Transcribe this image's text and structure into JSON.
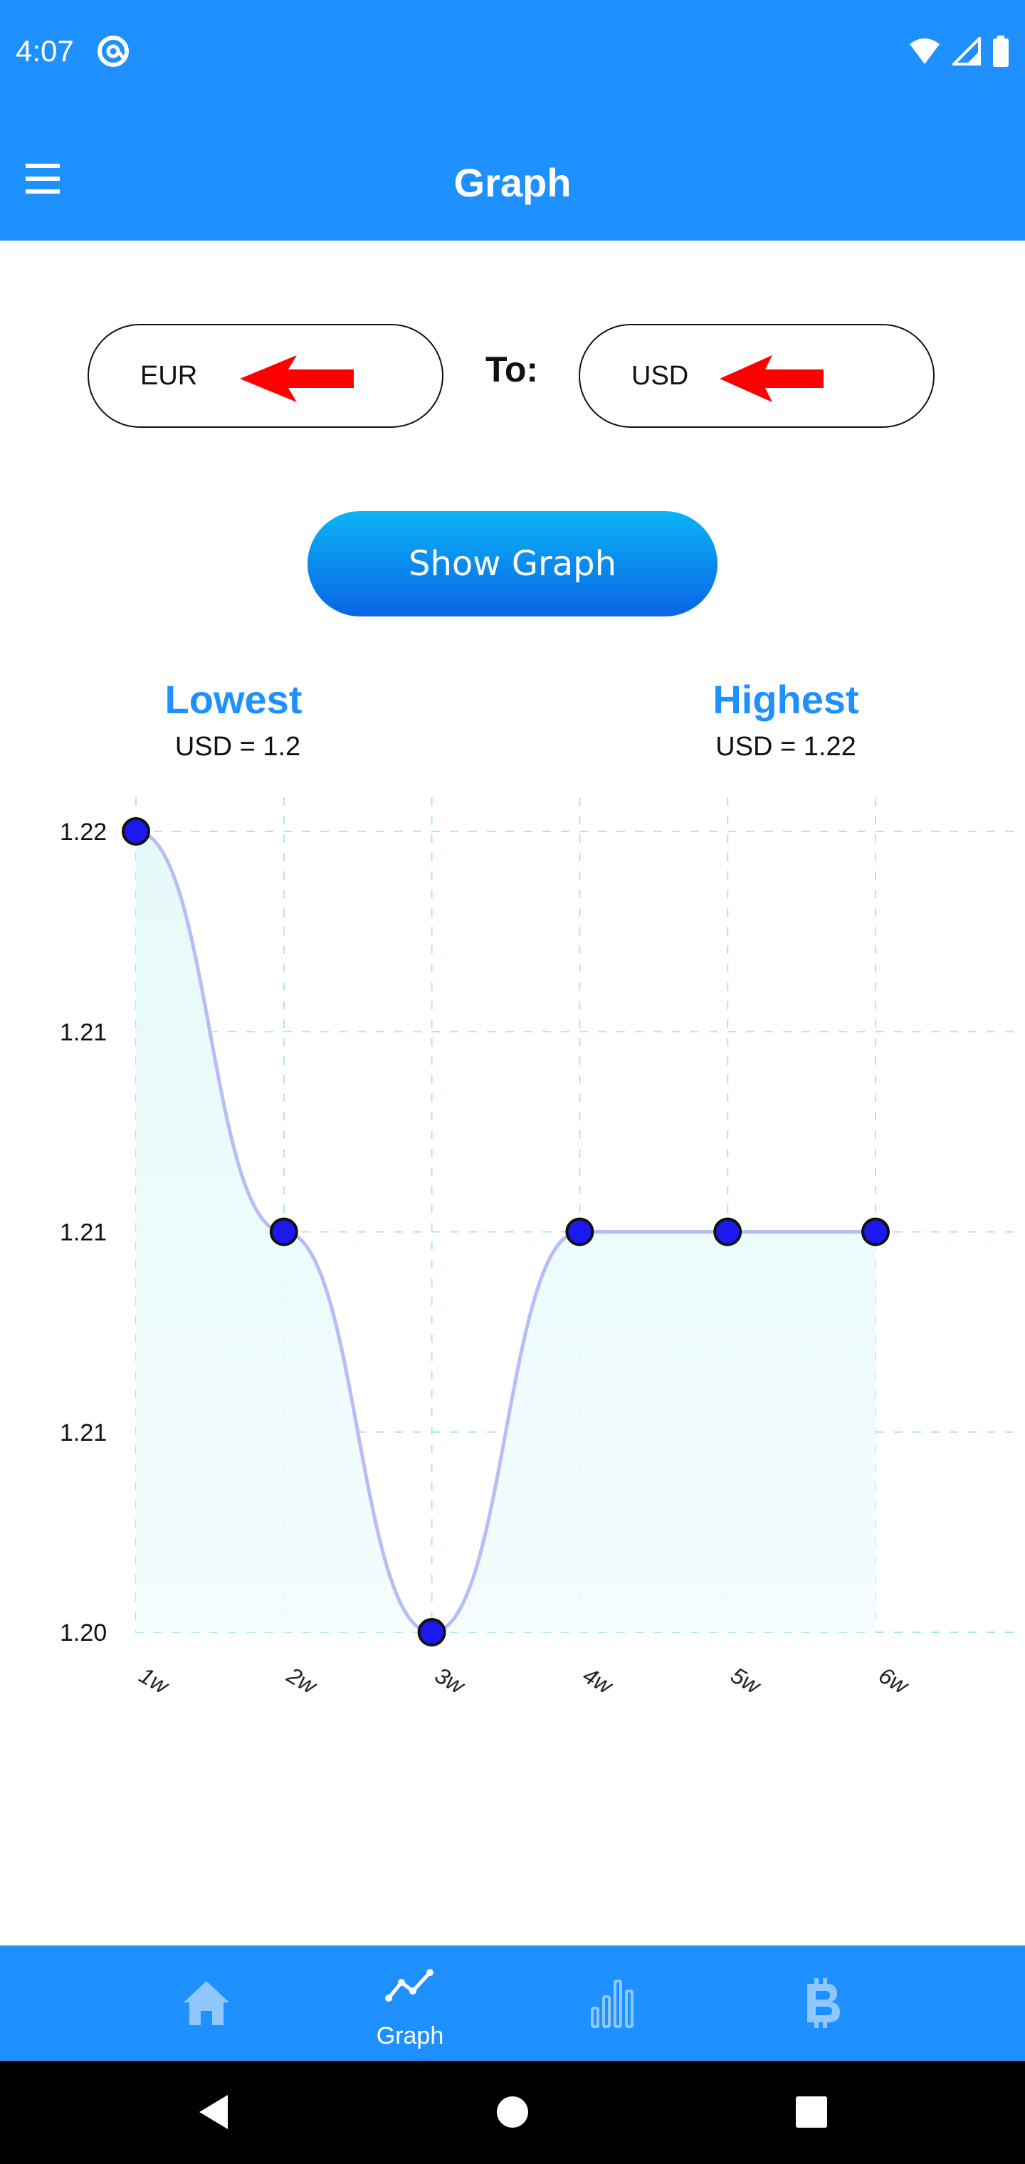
{
  "status_bar": {
    "time": "4:07",
    "app_icon": "at-sign-icon",
    "icons": [
      "wifi-icon",
      "signal-icon",
      "battery-icon"
    ]
  },
  "app_bar": {
    "title": "Graph",
    "menu_icon": "hamburger-menu-icon"
  },
  "converter": {
    "from_currency": "EUR",
    "to_label": "To:",
    "to_currency": "USD",
    "arrow_color": "#ff0000"
  },
  "show_graph_button": {
    "label": "Show Graph"
  },
  "stats": {
    "lowest_title": "Lowest",
    "lowest_value": "USD = 1.2",
    "highest_title": "Highest",
    "highest_value": "USD = 1.22"
  },
  "chart_data": {
    "type": "line",
    "categories": [
      "1w",
      "2w",
      "3w",
      "4w",
      "5w",
      "6w"
    ],
    "values": [
      1.22,
      1.21,
      1.2,
      1.21,
      1.21,
      1.21
    ],
    "y_tick_labels": [
      "1.22",
      "1.21",
      "1.21",
      "1.21",
      "1.20"
    ],
    "ylim": [
      1.2,
      1.22
    ],
    "grid": true,
    "line_color": "#b8bdf5",
    "fill_color": "#e6faf9",
    "point_color": "#1a1aee",
    "title": "",
    "xlabel": "",
    "ylabel": ""
  },
  "bottom_nav": {
    "items": [
      {
        "icon": "home-icon",
        "label": "",
        "active": false
      },
      {
        "icon": "line-chart-icon",
        "label": "Graph",
        "active": true
      },
      {
        "icon": "bar-chart-icon",
        "label": "",
        "active": false
      },
      {
        "icon": "bitcoin-icon",
        "label": "",
        "active": false
      }
    ]
  },
  "system_nav": {
    "icons": [
      "back-icon",
      "home-circle-icon",
      "recents-icon"
    ]
  },
  "colors": {
    "primary": "#1e90ff",
    "accent_blue": "#1e90ff",
    "nav_inactive": "#8ec8ff"
  }
}
